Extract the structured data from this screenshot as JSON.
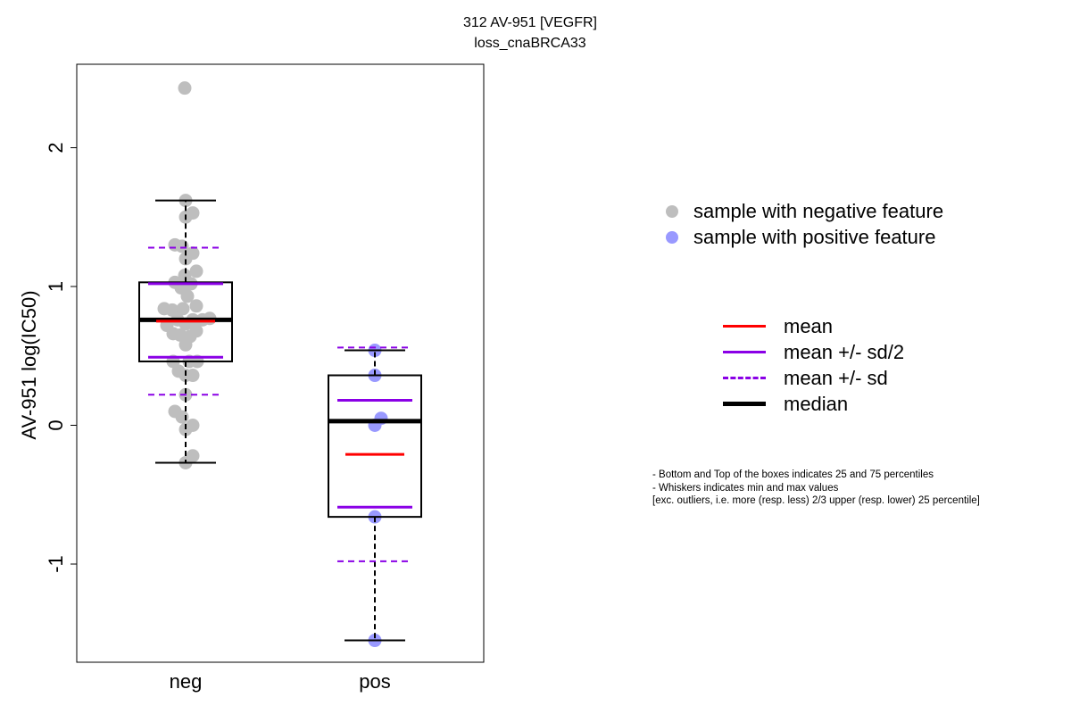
{
  "title": {
    "line1": "312 AV-951 [VEGFR]",
    "line2": "loss_cnaBRCA33"
  },
  "chart_data": {
    "type": "boxplot",
    "ylabel": "AV-951 log(IC50)",
    "xlabel": "",
    "ylim": [
      -1.7,
      2.6
    ],
    "yticks": [
      -1,
      0,
      1,
      2
    ],
    "ytick_labels": [
      "-1",
      "0",
      "1",
      "2"
    ],
    "categories": [
      "neg",
      "pos"
    ],
    "grid": false,
    "groups": [
      {
        "name": "neg",
        "point_color": "#bebebe",
        "whisker_min": -0.27,
        "q1": 0.46,
        "median": 0.76,
        "q3": 1.03,
        "whisker_max": 1.62,
        "mean": 0.75,
        "mean_minus_half_sd": 0.49,
        "mean_plus_half_sd": 1.02,
        "mean_minus_sd": 0.22,
        "mean_plus_sd": 1.28,
        "points": [
          {
            "x": -0.01,
            "y": 2.43
          },
          {
            "x": 0.0,
            "y": 1.62
          },
          {
            "x": 0.08,
            "y": 1.53
          },
          {
            "x": 0.0,
            "y": 1.5
          },
          {
            "x": -0.12,
            "y": 1.3
          },
          {
            "x": -0.04,
            "y": 1.29
          },
          {
            "x": 0.08,
            "y": 1.24
          },
          {
            "x": 0.0,
            "y": 1.2
          },
          {
            "x": 0.12,
            "y": 1.11
          },
          {
            "x": -0.01,
            "y": 1.08
          },
          {
            "x": -0.12,
            "y": 1.03
          },
          {
            "x": 0.06,
            "y": 1.02
          },
          {
            "x": -0.05,
            "y": 0.99
          },
          {
            "x": 0.02,
            "y": 0.93
          },
          {
            "x": 0.12,
            "y": 0.86
          },
          {
            "x": -0.24,
            "y": 0.84
          },
          {
            "x": -0.15,
            "y": 0.83
          },
          {
            "x": -0.03,
            "y": 0.84
          },
          {
            "x": 0.27,
            "y": 0.77
          },
          {
            "x": 0.19,
            "y": 0.76
          },
          {
            "x": -0.09,
            "y": 0.76
          },
          {
            "x": 0.08,
            "y": 0.76
          },
          {
            "x": -0.21,
            "y": 0.72
          },
          {
            "x": 0.0,
            "y": 0.73
          },
          {
            "x": -0.14,
            "y": 0.66
          },
          {
            "x": -0.06,
            "y": 0.65
          },
          {
            "x": 0.12,
            "y": 0.68
          },
          {
            "x": 0.05,
            "y": 0.64
          },
          {
            "x": 0.0,
            "y": 0.58
          },
          {
            "x": -0.14,
            "y": 0.46
          },
          {
            "x": 0.04,
            "y": 0.46
          },
          {
            "x": 0.13,
            "y": 0.46
          },
          {
            "x": -0.08,
            "y": 0.39
          },
          {
            "x": 0.0,
            "y": 0.36
          },
          {
            "x": 0.08,
            "y": 0.36
          },
          {
            "x": 0.0,
            "y": 0.22
          },
          {
            "x": -0.12,
            "y": 0.1
          },
          {
            "x": -0.04,
            "y": 0.06
          },
          {
            "x": 0.08,
            "y": 0.0
          },
          {
            "x": 0.0,
            "y": -0.03
          },
          {
            "x": 0.08,
            "y": -0.22
          },
          {
            "x": 0.0,
            "y": -0.27
          }
        ]
      },
      {
        "name": "pos",
        "point_color": "#9999ff",
        "whisker_min": -1.55,
        "q1": -0.66,
        "median": 0.03,
        "q3": 0.36,
        "whisker_max": 0.54,
        "mean": -0.21,
        "mean_minus_half_sd": -0.59,
        "mean_plus_half_sd": 0.18,
        "mean_minus_sd": -0.98,
        "mean_plus_sd": 0.56,
        "points": [
          {
            "x": 0.0,
            "y": 0.54
          },
          {
            "x": 0.0,
            "y": 0.36
          },
          {
            "x": 0.07,
            "y": 0.05
          },
          {
            "x": 0.0,
            "y": 0.0
          },
          {
            "x": 0.0,
            "y": -0.66
          },
          {
            "x": 0.0,
            "y": -1.55
          }
        ]
      }
    ],
    "colors": {
      "mean": "#ff0000",
      "sd": "#8a00e6",
      "median": "#000000"
    }
  },
  "legend": {
    "points": [
      {
        "label": "sample with negative feature",
        "color": "#bebebe"
      },
      {
        "label": "sample with positive feature",
        "color": "#9999ff"
      }
    ],
    "lines": [
      {
        "label": "mean",
        "color": "#ff0000",
        "style": "solid",
        "weight": "normal"
      },
      {
        "label": "mean +/- sd/2",
        "color": "#8a00e6",
        "style": "solid",
        "weight": "normal"
      },
      {
        "label": "mean +/- sd",
        "color": "#8a00e6",
        "style": "dashed",
        "weight": "normal"
      },
      {
        "label": "median",
        "color": "#000000",
        "style": "solid",
        "weight": "bold"
      }
    ]
  },
  "footnote": {
    "line1": "- Bottom and Top of the boxes indicates 25 and 75 percentiles",
    "line2": "- Whiskers indicates min and max values",
    "line3": "[exc. outliers, i.e. more (resp. less) 2/3 upper (resp. lower) 25 percentile]"
  }
}
